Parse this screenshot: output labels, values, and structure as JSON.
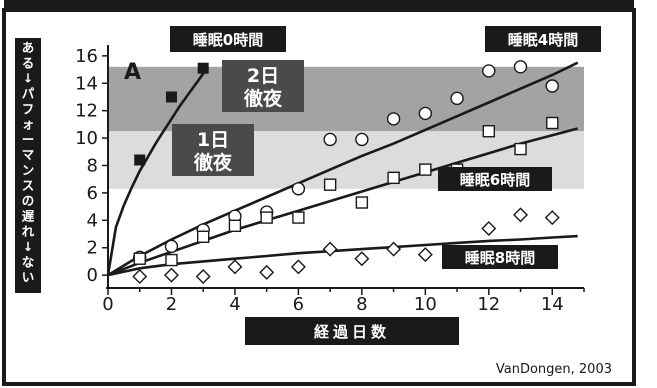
{
  "chart_data": {
    "type": "scatter",
    "panel_label": "A",
    "xlabel": "経過日数",
    "ylabel": "ある↓パフォーマンスの遅れ↓ない",
    "xlim": [
      0,
      15
    ],
    "ylim": [
      -0.5,
      16.5
    ],
    "x_ticks": [
      0,
      2,
      4,
      6,
      8,
      10,
      12,
      14
    ],
    "y_ticks": [
      0,
      2,
      4,
      6,
      8,
      10,
      12,
      14,
      16
    ],
    "bands": [
      {
        "label": "2日\n徹夜",
        "y_range": [
          10.5,
          15.2
        ],
        "color": "#a3a3a3"
      },
      {
        "label": "1日\n徹夜",
        "y_range": [
          6.3,
          10.5
        ],
        "color": "#dcdcdc"
      }
    ],
    "series": [
      {
        "name": "睡眠0時間",
        "marker": "filled-square",
        "x": [
          1,
          2,
          3
        ],
        "y": [
          8.4,
          13.0,
          15.1
        ],
        "fit": {
          "x": [
            0,
            0.25,
            0.5,
            0.75,
            1,
            1.25,
            1.5,
            1.75,
            2,
            2.25,
            2.5,
            2.75,
            3,
            3.15
          ],
          "y": [
            0,
            3.5,
            5.1,
            6.4,
            7.6,
            8.6,
            9.6,
            10.5,
            11.4,
            12.3,
            13.1,
            13.9,
            14.7,
            15.2
          ]
        }
      },
      {
        "name": "睡眠4時間",
        "marker": "circle",
        "x": [
          1,
          2,
          3,
          4,
          5,
          6,
          7,
          8,
          9,
          10,
          11,
          12,
          13,
          14
        ],
        "y": [
          1.3,
          2.1,
          3.3,
          4.3,
          4.6,
          6.3,
          9.9,
          9.9,
          11.4,
          11.8,
          12.9,
          14.9,
          15.2,
          13.8
        ],
        "fit": {
          "x": [
            0,
            1,
            2,
            3,
            4,
            5,
            6,
            7,
            8,
            9,
            10,
            11,
            12,
            13,
            14,
            14.8
          ],
          "y": [
            0,
            1.4,
            2.6,
            3.7,
            4.7,
            5.7,
            6.7,
            7.7,
            8.7,
            9.6,
            10.6,
            11.6,
            12.6,
            13.6,
            14.6,
            15.5
          ]
        }
      },
      {
        "name": "睡眠6時間",
        "marker": "square",
        "x": [
          1,
          2,
          3,
          4,
          5,
          6,
          7,
          8,
          9,
          10,
          11,
          12,
          13,
          14
        ],
        "y": [
          1.2,
          1.1,
          2.8,
          3.6,
          4.2,
          4.2,
          6.6,
          5.3,
          7.1,
          7.7,
          7.7,
          10.5,
          9.2,
          11.1
        ],
        "fit": {
          "x": [
            0,
            1,
            2,
            3,
            4,
            5,
            6,
            7,
            8,
            9,
            10,
            11,
            12,
            13,
            14,
            14.8
          ],
          "y": [
            0,
            0.9,
            1.7,
            2.5,
            3.3,
            4.0,
            4.7,
            5.4,
            6.1,
            6.8,
            7.5,
            8.2,
            8.9,
            9.6,
            10.2,
            10.7
          ]
        }
      },
      {
        "name": "睡眠8時間",
        "marker": "diamond",
        "x": [
          1,
          2,
          3,
          4,
          5,
          6,
          7,
          8,
          9,
          10,
          11,
          12,
          13,
          14
        ],
        "y": [
          -0.1,
          0.0,
          -0.1,
          0.6,
          0.2,
          0.6,
          1.9,
          1.2,
          1.9,
          1.5,
          1.6,
          3.4,
          4.4,
          4.2
        ],
        "fit": {
          "x": [
            0,
            1,
            2,
            3,
            4,
            5,
            6,
            7,
            8,
            9,
            10,
            11,
            12,
            13,
            14,
            14.8
          ],
          "y": [
            0,
            0.5,
            0.8,
            1.0,
            1.2,
            1.4,
            1.6,
            1.75,
            1.9,
            2.05,
            2.2,
            2.35,
            2.5,
            2.6,
            2.75,
            2.85
          ]
        }
      }
    ],
    "source": "VanDongen, 2003"
  },
  "colors": {
    "frame": "#1a1a1a",
    "badge_bg": "#1a1a1a",
    "badge_text": "#ffffff",
    "band_dark": "#a3a3a3",
    "band_light": "#dcdcdc",
    "band_label_bg": "#4a4a4a"
  }
}
